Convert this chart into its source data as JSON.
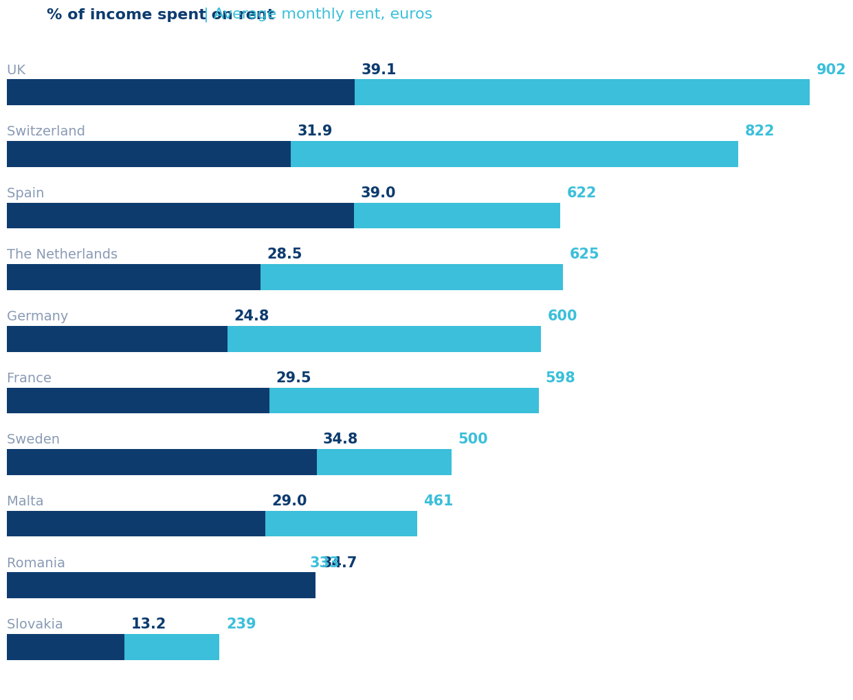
{
  "title_bold": "% of income spent on rent",
  "title_separator": " | ",
  "title_light": "Average monthly rent, euros",
  "countries": [
    "UK",
    "Switzerland",
    "Spain",
    "The Netherlands",
    "Germany",
    "France",
    "Sweden",
    "Malta",
    "Romania",
    "Slovakia"
  ],
  "pct_income": [
    39.1,
    31.9,
    39.0,
    28.5,
    24.8,
    29.5,
    34.8,
    29.0,
    34.7,
    13.2
  ],
  "avg_rent": [
    902,
    822,
    622,
    625,
    600,
    598,
    500,
    461,
    333,
    239
  ],
  "dark_blue": "#0d3b6e",
  "light_blue": "#3bbfda",
  "label_color_country": "#8a9bb5",
  "label_color_pct": "#0d3b6e",
  "label_color_rent": "#3bbfda",
  "background_color": "#ffffff",
  "bar_height": 0.42,
  "max_rent": 902,
  "pct_scale_factor": 10.0,
  "title_fontsize": 16,
  "country_fontsize": 14,
  "value_fontsize": 15
}
